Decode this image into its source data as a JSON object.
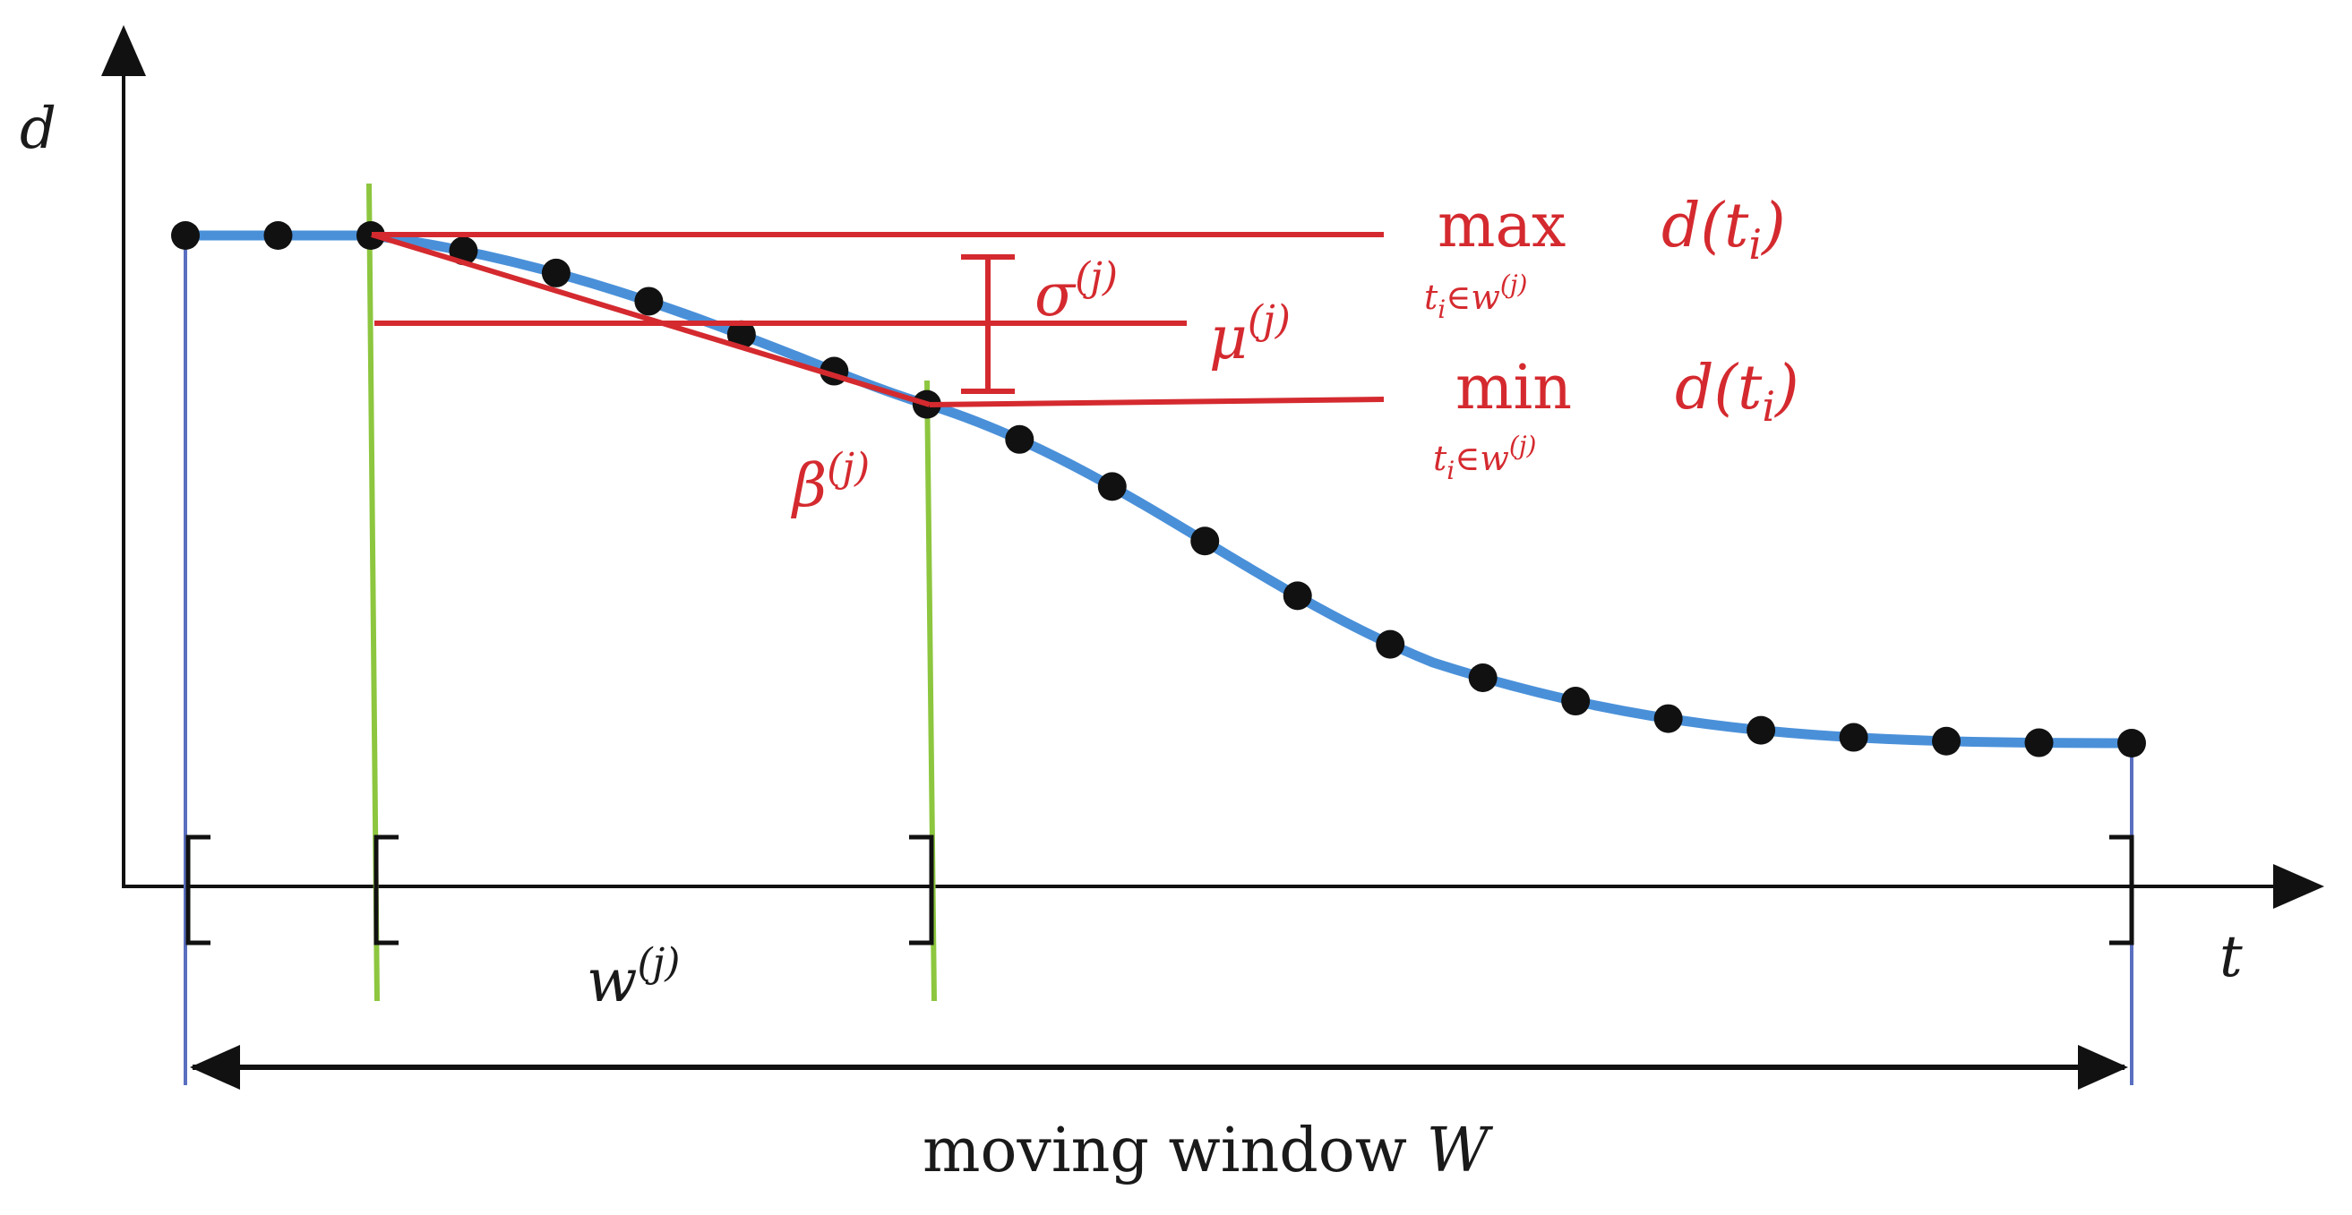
{
  "axes": {
    "y_label": "d",
    "x_label": "t"
  },
  "colors": {
    "curve": "#4a90d9",
    "points": "#111111",
    "annotation": "#d42a2f",
    "subwindow_lines": "#8dc63f",
    "window_lines": "#5a6fc0",
    "axis": "#111111"
  },
  "annotations": {
    "max_op": "max",
    "max_sub": "t",
    "max_sub_i": "i",
    "max_sub_rest": "∈w",
    "max_sub_sup": "(j)",
    "max_expr_d": "d(t",
    "max_expr_i": "i",
    "max_expr_close": ")",
    "min_op": "min",
    "min_sub": "t",
    "min_sub_i": "i",
    "min_sub_rest": "∈w",
    "min_sub_sup": "(j)",
    "min_expr_d": "d(t",
    "min_expr_i": "i",
    "min_expr_close": ")",
    "sigma": "σ",
    "sigma_sup": "(j)",
    "mu": "μ",
    "mu_sup": "(j)",
    "beta": "β",
    "beta_sup": "(j)",
    "w": "w",
    "w_sup": "(j)",
    "moving_window": "moving window ",
    "moving_window_var": "W"
  },
  "series": {
    "point_count": 22
  }
}
